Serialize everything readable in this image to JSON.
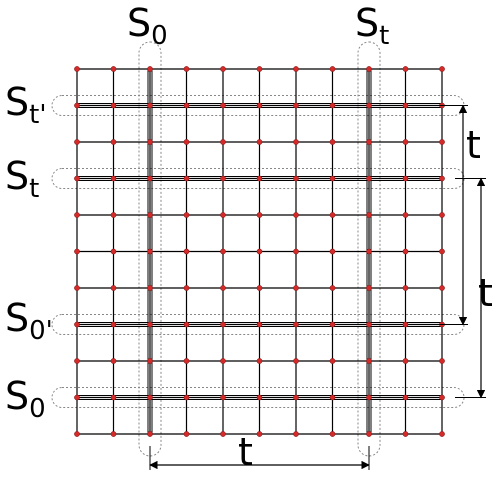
{
  "diagram": {
    "grid": {
      "columns": 11,
      "rows": 11,
      "node_color": "#d42a2a",
      "line_color": "#000000"
    },
    "top_labels": [
      {
        "main": "S",
        "sub": "0"
      },
      {
        "main": "S",
        "sub": "t"
      }
    ],
    "left_labels": [
      {
        "main": "S",
        "sub": "t'"
      },
      {
        "main": "S",
        "sub": "t"
      },
      {
        "main": "S",
        "sub": "0'"
      },
      {
        "main": "S",
        "sub": "0"
      }
    ],
    "distance_labels": {
      "bottom": "t",
      "right_upper": "t",
      "right_lower": "t"
    }
  }
}
